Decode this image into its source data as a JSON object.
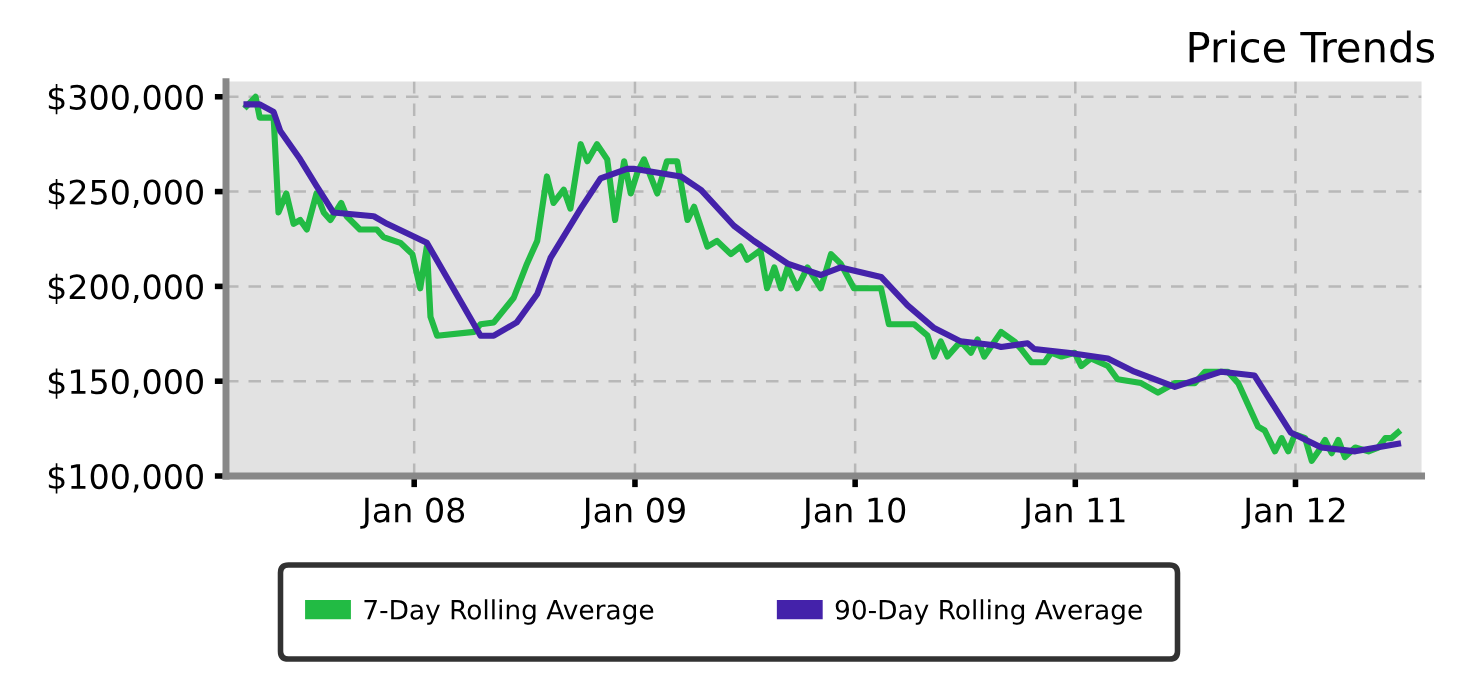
{
  "chart_data": {
    "type": "line",
    "title": "Price Trends",
    "xlim": [
      "2007-02-23",
      "2012-07-28"
    ],
    "xticks": [
      {
        "value": "2008-01-01",
        "label": "Jan 08"
      },
      {
        "value": "2009-01-01",
        "label": "Jan 09"
      },
      {
        "value": "2010-01-01",
        "label": "Jan 10"
      },
      {
        "value": "2011-01-01",
        "label": "Jan 11"
      },
      {
        "value": "2012-01-01",
        "label": "Jan 12"
      }
    ],
    "ylim": [
      100000,
      308000
    ],
    "yticks": [
      {
        "value": 100000,
        "label": "$100,000"
      },
      {
        "value": 150000,
        "label": "$150,000"
      },
      {
        "value": 200000,
        "label": "$200,000"
      },
      {
        "value": 250000,
        "label": "$250,000"
      },
      {
        "value": 300000,
        "label": "$300,000"
      }
    ],
    "grid": true,
    "legend": "bottom",
    "line_style": "solid",
    "marker": "none",
    "series": [
      {
        "name": "7-Day Rolling Average",
        "color": "#22bb44",
        "x": [
          "2007-03-29",
          "2007-04-13",
          "2007-04-20",
          "2007-05-13",
          "2007-05-21",
          "2007-06-03",
          "2007-06-15",
          "2007-06-26",
          "2007-07-07",
          "2007-07-23",
          "2007-08-04",
          "2007-08-15",
          "2007-09-02",
          "2007-09-11",
          "2007-10-03",
          "2007-10-31",
          "2007-11-11",
          "2007-12-09",
          "2007-12-29",
          "2008-01-11",
          "2008-01-22",
          "2008-01-28",
          "2008-02-08",
          "2008-04-09",
          "2008-04-20",
          "2008-05-12",
          "2008-06-14",
          "2008-07-06",
          "2008-07-23",
          "2008-08-08",
          "2008-08-19",
          "2008-09-05",
          "2008-09-16",
          "2008-10-03",
          "2008-10-14",
          "2008-10-30",
          "2008-11-16",
          "2008-11-29",
          "2008-12-14",
          "2008-12-25",
          "2009-01-05",
          "2009-01-16",
          "2009-02-07",
          "2009-02-23",
          "2009-03-12",
          "2009-03-29",
          "2009-04-09",
          "2009-05-01",
          "2009-05-17",
          "2009-06-09",
          "2009-06-25",
          "2009-07-06",
          "2009-07-28",
          "2009-08-08",
          "2009-08-20",
          "2009-08-31",
          "2009-09-11",
          "2009-09-27",
          "2009-10-14",
          "2009-11-05",
          "2009-11-22",
          "2009-12-08",
          "2009-12-30",
          "2010-02-13",
          "2010-02-26",
          "2010-04-09",
          "2010-05-01",
          "2010-05-12",
          "2010-05-23",
          "2010-06-03",
          "2010-06-25",
          "2010-07-12",
          "2010-07-23",
          "2010-08-03",
          "2010-08-31",
          "2010-09-22",
          "2010-10-03",
          "2010-10-20",
          "2010-11-11",
          "2010-11-22",
          "2010-12-09",
          "2010-12-31",
          "2011-01-11",
          "2011-01-27",
          "2011-02-24",
          "2011-03-12",
          "2011-04-20",
          "2011-05-18",
          "2011-06-15",
          "2011-07-18",
          "2011-08-04",
          "2011-09-11",
          "2011-09-28",
          "2011-10-31",
          "2011-11-11",
          "2011-11-28",
          "2011-12-09",
          "2011-12-20",
          "2011-12-31",
          "2012-01-17",
          "2012-01-28",
          "2012-02-08",
          "2012-02-19",
          "2012-03-01",
          "2012-03-12",
          "2012-03-23",
          "2012-04-09",
          "2012-05-01",
          "2012-05-17",
          "2012-05-29",
          "2012-06-08",
          "2012-06-19"
        ],
        "values": [
          295000,
          300000,
          289000,
          289000,
          239000,
          249000,
          233000,
          235000,
          230000,
          249000,
          239000,
          235000,
          244000,
          237000,
          230000,
          230000,
          226000,
          223000,
          217000,
          199000,
          221000,
          184000,
          174000,
          176000,
          180000,
          181000,
          194000,
          212000,
          224000,
          258000,
          244000,
          251000,
          241000,
          275000,
          266000,
          275000,
          267000,
          235000,
          266000,
          249000,
          260000,
          267000,
          249000,
          266000,
          266000,
          235000,
          242000,
          221000,
          224000,
          217000,
          221000,
          214000,
          219000,
          199000,
          210000,
          199000,
          210000,
          199000,
          210000,
          199000,
          217000,
          212000,
          199000,
          199000,
          180000,
          180000,
          174000,
          163000,
          171000,
          163000,
          171000,
          165000,
          172000,
          163000,
          176000,
          171000,
          167000,
          160000,
          160000,
          165000,
          163000,
          165000,
          158000,
          162000,
          158000,
          151000,
          149000,
          144000,
          149000,
          149000,
          155000,
          155000,
          149000,
          126000,
          124000,
          113000,
          120000,
          113000,
          122000,
          120000,
          108000,
          113000,
          119000,
          112000,
          119000,
          110000,
          115000,
          113000,
          115000,
          120000,
          120000,
          123000
        ]
      },
      {
        "name": "90-Day Rolling Average",
        "color": "#4422aa",
        "x": [
          "2007-03-29",
          "2007-04-20",
          "2007-05-13",
          "2007-05-24",
          "2007-06-26",
          "2007-07-23",
          "2007-08-20",
          "2007-10-26",
          "2007-11-17",
          "2008-01-22",
          "2008-04-20",
          "2008-05-12",
          "2008-06-19",
          "2008-07-23",
          "2008-08-14",
          "2008-10-03",
          "2008-11-05",
          "2008-12-19",
          "2008-12-30",
          "2009-03-18",
          "2009-04-20",
          "2009-06-14",
          "2009-07-17",
          "2009-09-11",
          "2009-11-05",
          "2009-12-08",
          "2010-02-13",
          "2010-03-29",
          "2010-05-12",
          "2010-06-25",
          "2010-08-20",
          "2010-08-31",
          "2010-10-14",
          "2010-10-25",
          "2010-12-20",
          "2011-02-24",
          "2011-04-09",
          "2011-06-15",
          "2011-08-31",
          "2011-10-25",
          "2011-12-24",
          "2012-02-13",
          "2012-04-09",
          "2012-06-19"
        ],
        "values": [
          296000,
          296000,
          292000,
          282000,
          267000,
          253000,
          239000,
          237000,
          233000,
          223000,
          174000,
          174000,
          181000,
          196000,
          215000,
          241000,
          257000,
          262000,
          262000,
          258000,
          251000,
          232000,
          224000,
          212000,
          206000,
          210000,
          205000,
          190000,
          178000,
          171000,
          169000,
          168000,
          170000,
          167000,
          165000,
          162000,
          155000,
          147000,
          155000,
          153000,
          123000,
          115000,
          113000,
          117000
        ]
      }
    ]
  }
}
